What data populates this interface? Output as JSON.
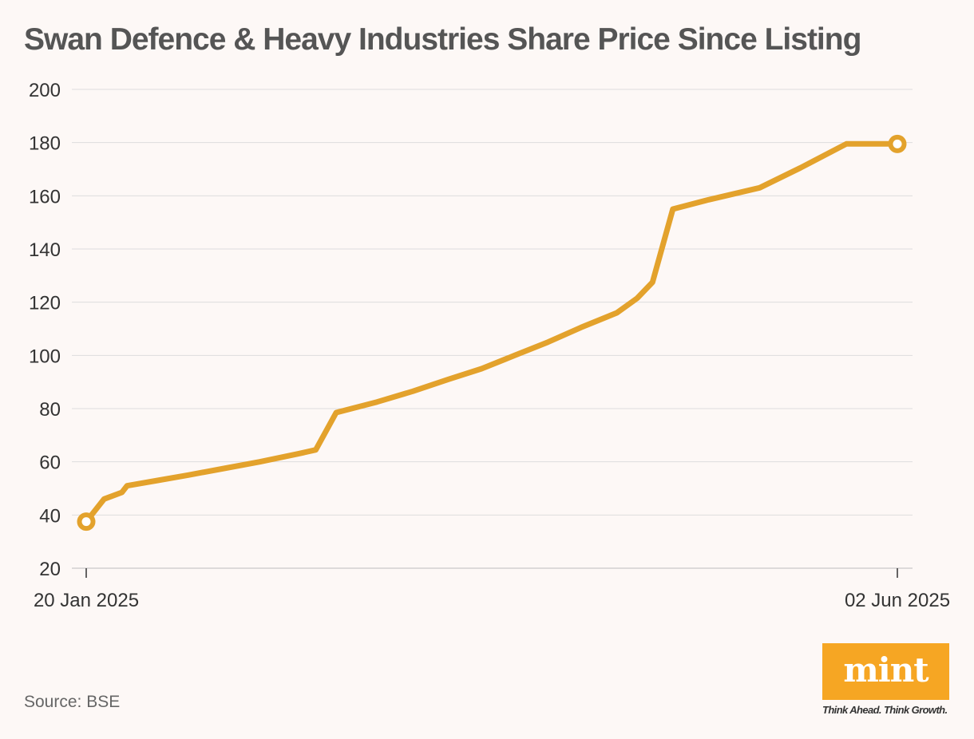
{
  "chart_data": {
    "type": "line",
    "title": "Swan Defence & Heavy Industries Share Price Since Listing",
    "xlabel": "",
    "ylabel": "",
    "ylim": [
      20,
      200
    ],
    "yticks": [
      20,
      40,
      60,
      80,
      100,
      120,
      140,
      160,
      180,
      200
    ],
    "x_tick_labels": [
      "20 Jan 2025",
      "02 Jun 2025"
    ],
    "grid": true,
    "series": [
      {
        "name": "Share Price",
        "color": "#e3a22c",
        "x": [
          0,
          3.5,
          7,
          8,
          14,
          20,
          27,
          34,
          41.5,
          45,
          49,
          57,
          64,
          71,
          77.5,
          84,
          90.5,
          97,
          104,
          108,
          111,
          115,
          122,
          132,
          140,
          149,
          159
        ],
        "values": [
          37.5,
          46,
          48.5,
          51,
          53,
          55,
          57.5,
          60,
          63,
          64.5,
          78.5,
          82.5,
          86.5,
          91,
          95,
          100,
          105,
          110.5,
          116,
          121.5,
          127.5,
          155,
          158.5,
          163,
          170.5,
          179.5,
          179.5
        ]
      }
    ],
    "markers": [
      "start",
      "end"
    ]
  },
  "source_text": "Source: BSE",
  "brand": {
    "logo_text": "mint",
    "tagline": "Think Ahead. Think Growth.",
    "logo_color": "#f6a623"
  }
}
